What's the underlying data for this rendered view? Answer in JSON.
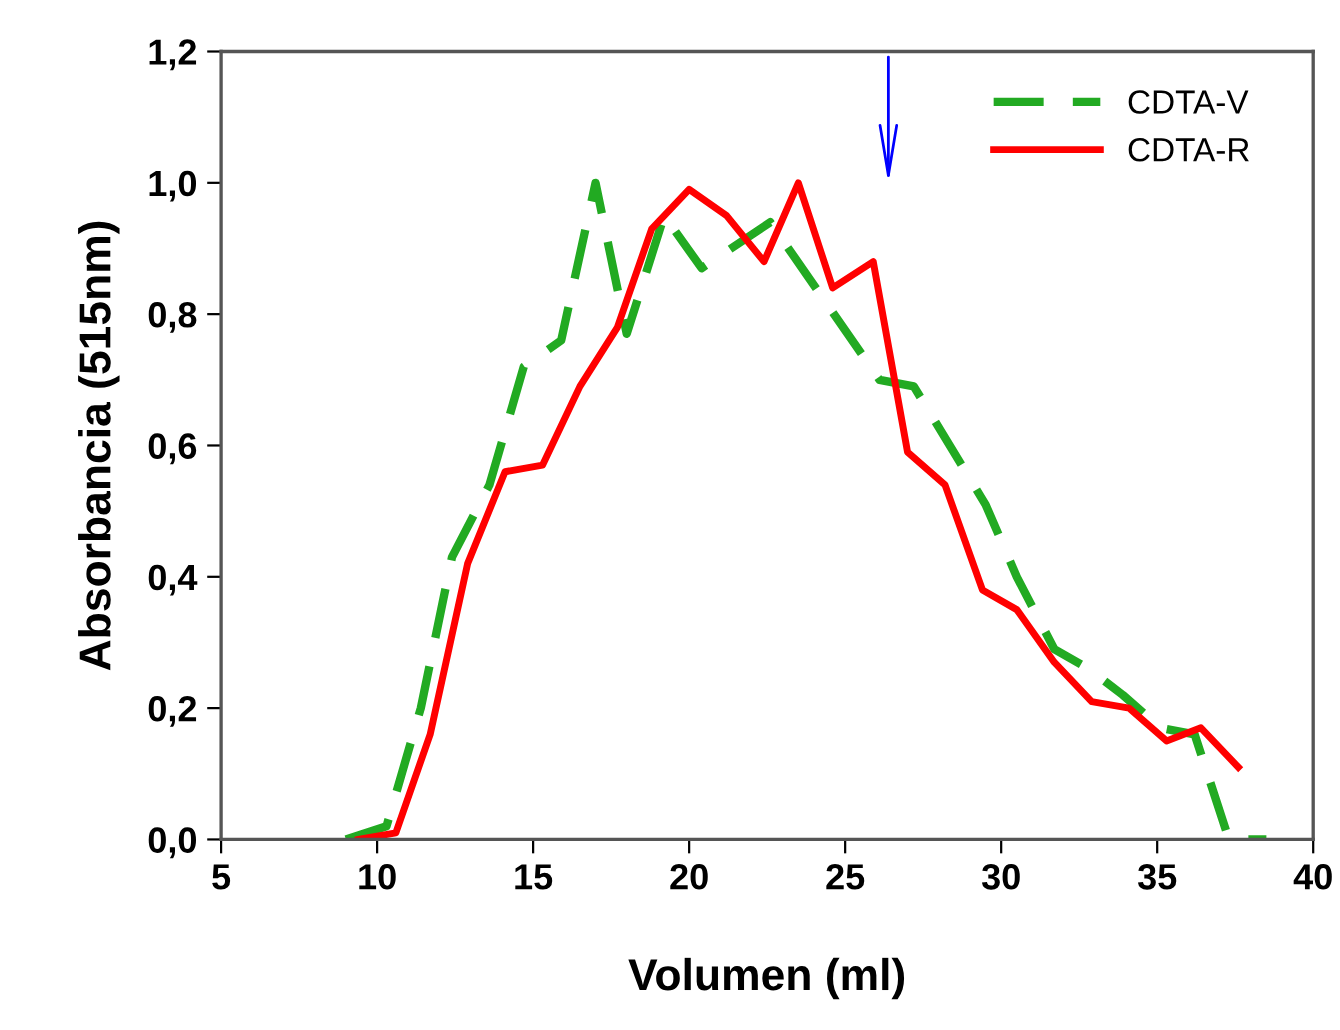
{
  "chart_data": {
    "type": "line",
    "xlabel": "Volumen (ml)",
    "ylabel": "Absorbancia (515nm)",
    "xlim": [
      5,
      40
    ],
    "xticks": [
      5,
      10,
      15,
      20,
      25,
      30,
      35,
      40
    ],
    "ylim": [
      0,
      1.2
    ],
    "yticks": [
      {
        "value": 0,
        "label": "0,0"
      },
      {
        "value": 0.2,
        "label": "0,2"
      },
      {
        "value": 0.4,
        "label": "0,4"
      },
      {
        "value": 0.6,
        "label": "0,6"
      },
      {
        "value": 0.8,
        "label": "0,8"
      },
      {
        "value": 1.0,
        "label": "1,0"
      },
      {
        "value": 1.2,
        "label": "1,2"
      }
    ],
    "grid": false,
    "legend": "top right",
    "series": [
      {
        "name": "CDTA-V",
        "color": "#22aa22",
        "line_style": "dashed",
        "x": [
          9.0,
          10.3,
          11.4,
          12.4,
          13.6,
          14.7,
          15.9,
          17.0,
          18.0,
          19.2,
          20.4,
          22.6,
          26.1,
          27.2,
          29.5,
          30.5,
          31.7,
          32.8,
          33.9,
          35.1,
          36.2,
          37.3,
          38.5
        ],
        "values": [
          0.0,
          0.02,
          0.2,
          0.43,
          0.54,
          0.72,
          0.76,
          1.0,
          0.77,
          0.95,
          0.87,
          0.94,
          0.7,
          0.69,
          0.51,
          0.4,
          0.29,
          0.26,
          0.22,
          0.17,
          0.16,
          0.0,
          0.0
        ]
      },
      {
        "name": "CDTA-R",
        "color": "#ff0000",
        "line_style": "solid",
        "x": [
          9.4,
          10.6,
          11.7,
          12.9,
          14.1,
          15.3,
          16.5,
          17.7,
          18.8,
          20.0,
          21.2,
          22.4,
          23.5,
          24.6,
          25.9,
          27.0,
          28.2,
          29.4,
          30.5,
          31.7,
          32.9,
          34.1,
          35.3,
          36.4,
          37.6
        ],
        "values": [
          0.0,
          0.01,
          0.16,
          0.42,
          0.56,
          0.57,
          0.69,
          0.78,
          0.93,
          0.99,
          0.95,
          0.88,
          1.0,
          0.84,
          0.88,
          0.59,
          0.54,
          0.38,
          0.35,
          0.27,
          0.21,
          0.2,
          0.15,
          0.17,
          0.11
        ]
      }
    ]
  }
}
